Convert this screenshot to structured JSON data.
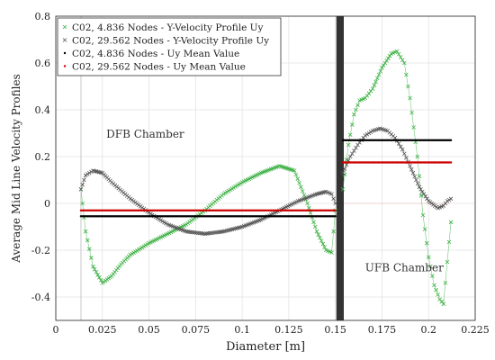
{
  "chart_data": {
    "type": "scatter",
    "title": "",
    "xlabel": "Diameter [m]",
    "ylabel": "Average Mid Line Velocity Profiles",
    "xlim": [
      0,
      0.225
    ],
    "ylim": [
      -0.5,
      0.8
    ],
    "x_ticks": [
      0,
      0.025,
      0.05,
      0.075,
      0.1,
      0.125,
      0.15,
      0.175,
      0.2,
      0.225
    ],
    "x_tick_labels": [
      "0",
      "0.025",
      "0.05",
      "0.075",
      "0.1",
      "0.125",
      "0.15",
      "0.175",
      "0.2",
      "0.225"
    ],
    "y_ticks": [
      -0.4,
      -0.2,
      0,
      0.2,
      0.4,
      0.6,
      0.8
    ],
    "y_tick_labels": [
      "-0.4",
      "-0.2",
      "0",
      "0.2",
      "0.4",
      "0.6",
      "0.8"
    ],
    "grid": true,
    "legend_position": "top-left",
    "annotations": [
      {
        "text": "DFB Chamber",
        "x": 0.048,
        "y": 0.28
      },
      {
        "text": "UFB Chamber",
        "x": 0.187,
        "y": -0.29
      }
    ],
    "bar_region": [
      0.1505,
      0.1545
    ],
    "vline": 0.0135,
    "series": [
      {
        "name": "C02, 4.836 Nodes - Y-Velocity Profile Uy",
        "color": "#3cb043",
        "marker": "x",
        "segments": [
          {
            "x": [
              0.0135,
              0.016,
              0.02,
              0.025,
              0.03,
              0.035,
              0.04,
              0.05,
              0.06,
              0.07,
              0.08,
              0.09,
              0.1,
              0.11,
              0.12,
              0.128,
              0.135,
              0.14,
              0.145,
              0.148,
              0.15
            ],
            "y": [
              0.06,
              -0.12,
              -0.27,
              -0.34,
              -0.31,
              -0.26,
              -0.22,
              -0.17,
              -0.13,
              -0.09,
              -0.03,
              0.04,
              0.09,
              0.13,
              0.16,
              0.14,
              0.0,
              -0.12,
              -0.2,
              -0.21,
              -0.03
            ]
          },
          {
            "x": [
              0.154,
              0.157,
              0.16,
              0.163,
              0.166,
              0.17,
              0.175,
              0.18,
              0.183,
              0.187,
              0.19,
              0.194,
              0.197,
              0.2,
              0.203,
              0.206,
              0.208,
              0.21,
              0.212
            ],
            "y": [
              0.06,
              0.25,
              0.38,
              0.44,
              0.45,
              0.49,
              0.58,
              0.64,
              0.65,
              0.6,
              0.45,
              0.2,
              -0.05,
              -0.23,
              -0.35,
              -0.41,
              -0.43,
              -0.25,
              -0.08
            ]
          }
        ]
      },
      {
        "name": "C02, 29.562 Nodes - Y-Velocity Profile Uy",
        "color": "#555555",
        "marker": "x",
        "segments": [
          {
            "x": [
              0.0135,
              0.016,
              0.02,
              0.025,
              0.03,
              0.04,
              0.05,
              0.06,
              0.07,
              0.08,
              0.09,
              0.1,
              0.11,
              0.12,
              0.13,
              0.14,
              0.145,
              0.148,
              0.15
            ],
            "y": [
              0.06,
              0.12,
              0.14,
              0.13,
              0.09,
              0.02,
              -0.04,
              -0.09,
              -0.12,
              -0.13,
              -0.12,
              -0.1,
              -0.07,
              -0.03,
              0.01,
              0.04,
              0.05,
              0.04,
              0.0
            ]
          },
          {
            "x": [
              0.154,
              0.158,
              0.162,
              0.166,
              0.17,
              0.174,
              0.178,
              0.182,
              0.186,
              0.19,
              0.195,
              0.2,
              0.205,
              0.208,
              0.21,
              0.212
            ],
            "y": [
              0.13,
              0.2,
              0.25,
              0.29,
              0.31,
              0.32,
              0.31,
              0.28,
              0.23,
              0.16,
              0.07,
              0.01,
              -0.02,
              -0.01,
              0.01,
              0.02
            ]
          }
        ]
      },
      {
        "name": "C02, 4.836 Nodes - Uy Mean Value",
        "color": "#000000",
        "marker": "dot",
        "segments": [
          {
            "x": [
              0.0135,
              0.15
            ],
            "y": [
              -0.055,
              -0.055
            ]
          },
          {
            "x": [
              0.154,
              0.212
            ],
            "y": [
              0.27,
              0.27
            ]
          }
        ]
      },
      {
        "name": "C02, 29.562 Nodes - Uy Mean Value",
        "color": "#cc0000",
        "marker": "dot",
        "segments": [
          {
            "x": [
              0.0135,
              0.15
            ],
            "y": [
              -0.03,
              -0.03
            ]
          },
          {
            "x": [
              0.154,
              0.212
            ],
            "y": [
              0.175,
              0.175
            ]
          }
        ]
      }
    ]
  }
}
